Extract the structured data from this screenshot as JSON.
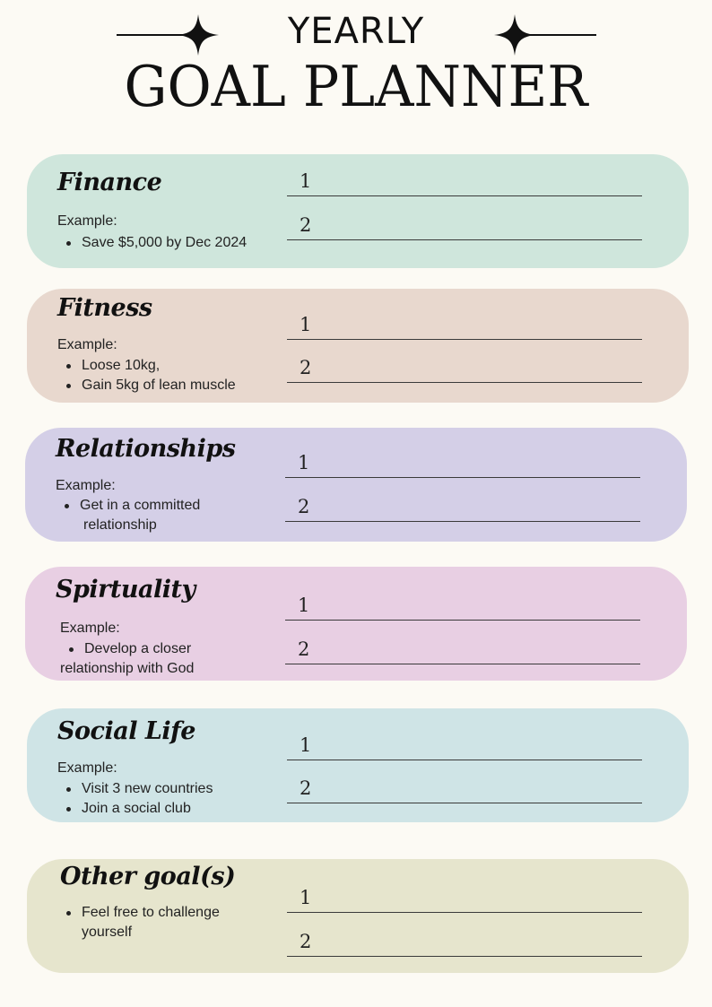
{
  "header": {
    "title_small": "YEARLY",
    "title_big": "GOAL PLANNER"
  },
  "categories": [
    {
      "title": "Finance",
      "example_label": "Example:",
      "bullets": [
        "Save $5,000 by Dec 2024"
      ],
      "color": "#cfe6dc",
      "goal_numbers": [
        "1",
        "2"
      ]
    },
    {
      "title": "Fitness",
      "example_label": "Example:",
      "bullets": [
        "Loose 10kg,",
        "Gain 5kg of lean muscle"
      ],
      "color": "#e8d8ce",
      "goal_numbers": [
        "1",
        "2"
      ]
    },
    {
      "title": "Relationships",
      "example_label": "Example:",
      "bullets": [
        "Get in a committed",
        "relationship"
      ],
      "color": "#d4cfe7",
      "goal_numbers": [
        "1",
        "2"
      ]
    },
    {
      "title": "Spirtuality",
      "example_label": "Example:",
      "bullets": [
        "Develop a closer",
        "relationship with God"
      ],
      "color": "#e8cfe3",
      "goal_numbers": [
        "1",
        "2"
      ]
    },
    {
      "title": "Social Life",
      "example_label": "Example:",
      "bullets": [
        "Visit 3 new countries",
        "Join a social club"
      ],
      "color": "#cfe4e6",
      "goal_numbers": [
        "1",
        "2"
      ]
    },
    {
      "title": "Other goal(s)",
      "example_label": "",
      "bullets": [
        "Feel free to challenge",
        "yourself"
      ],
      "color": "#e6e5cd",
      "goal_numbers": [
        "1",
        "2"
      ]
    }
  ]
}
